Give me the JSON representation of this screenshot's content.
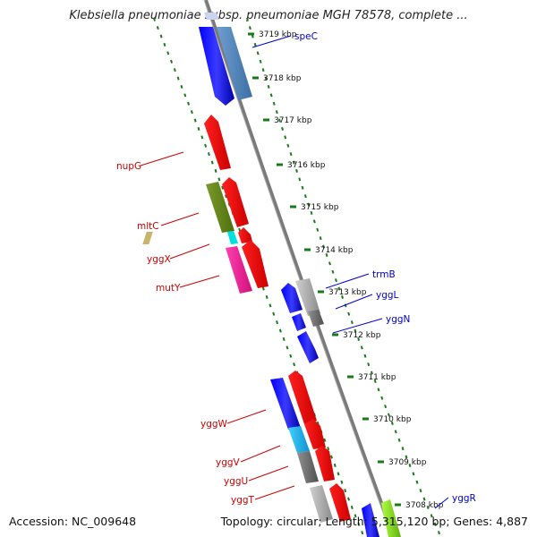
{
  "title": "Klebsiella pneumoniae subsp. pneumoniae MGH 78578, complete ...",
  "footer": {
    "accession": "Accession: NC_009648",
    "summary": "Topology: circular; Length: 5,315,120 bp; Genes: 4,887"
  },
  "ruler": {
    "unit": "kbp",
    "ticks": [
      {
        "label": "3719 kbp",
        "kbp": 3719
      },
      {
        "label": "3718 kbp",
        "kbp": 3718
      },
      {
        "label": "3717 kbp",
        "kbp": 3717
      },
      {
        "label": "3716 kbp",
        "kbp": 3716
      },
      {
        "label": "3715 kbp",
        "kbp": 3715
      },
      {
        "label": "3714 kbp",
        "kbp": 3714
      },
      {
        "label": "3713 kbp",
        "kbp": 3713
      },
      {
        "label": "3712 kbp",
        "kbp": 3712
      },
      {
        "label": "3711 kbp",
        "kbp": 3711
      },
      {
        "label": "3710 kbp",
        "kbp": 3710
      },
      {
        "label": "3709 kbp",
        "kbp": 3709
      },
      {
        "label": "3708 kbp",
        "kbp": 3708
      }
    ]
  },
  "genes_labeled_right": [
    {
      "name": "speC",
      "color": "#0000cc"
    },
    {
      "name": "trmB",
      "color": "#0000cc"
    },
    {
      "name": "yggL",
      "color": "#0000cc"
    },
    {
      "name": "yggN",
      "color": "#0000cc"
    },
    {
      "name": "yggR",
      "color": "#0000cc"
    }
  ],
  "genes_labeled_left": [
    {
      "name": "nupG",
      "color": "#cc0000"
    },
    {
      "name": "mltC",
      "color": "#cc0000"
    },
    {
      "name": "yggX",
      "color": "#cc0000"
    },
    {
      "name": "mutY",
      "color": "#cc0000"
    },
    {
      "name": "yggW",
      "color": "#cc0000"
    },
    {
      "name": "yggV",
      "color": "#cc0000"
    },
    {
      "name": "yggU",
      "color": "#cc0000"
    },
    {
      "name": "yggT",
      "color": "#cc0000"
    }
  ],
  "colors": {
    "backbone": "#808080",
    "tick": "#1a7a1a",
    "forward_strand": "#ff0000",
    "reverse_strand": "#0000ff"
  }
}
